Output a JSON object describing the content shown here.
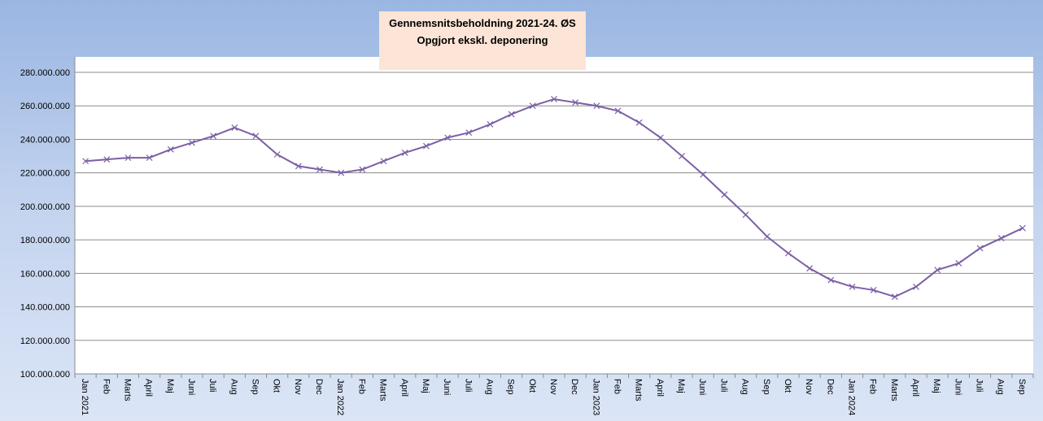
{
  "chart_data": {
    "type": "line",
    "title": "Gennemsnitsbeholdning 2021-24. ØS",
    "subtitle": "Opgjort ekskl. deponering",
    "categories": [
      "Jan 2021",
      "Feb",
      "Marts",
      "April",
      "Maj",
      "Juni",
      "Juli",
      "Aug",
      "Sep",
      "Okt",
      "Nov",
      "Dec",
      "Jan 2022",
      "Feb",
      "Marts",
      "April",
      "Maj",
      "Juni",
      "Juli",
      "Aug",
      "Sep",
      "Okt",
      "Nov",
      "Dec",
      "Jan 2023",
      "Feb",
      "Marts",
      "April",
      "Maj",
      "Juni",
      "Juli",
      "Aug",
      "Sep",
      "Okt",
      "Nov",
      "Dec",
      "Jan 2024",
      "Feb",
      "Marts",
      "April",
      "Maj",
      "Juni",
      "Juli",
      "Aug",
      "Sep"
    ],
    "series": [
      {
        "color": "#7b5fa6",
        "values": [
          227000000,
          228000000,
          229000000,
          229000000,
          234000000,
          238000000,
          242000000,
          247000000,
          242000000,
          231000000,
          224000000,
          222000000,
          220000000,
          222000000,
          227000000,
          232000000,
          236000000,
          241000000,
          244000000,
          249000000,
          255000000,
          260000000,
          264000000,
          262000000,
          260000000,
          257000000,
          250000000,
          241000000,
          230000000,
          219000000,
          207000000,
          195000000,
          182000000,
          172000000,
          163000000,
          156000000,
          152000000,
          150000000,
          146000000,
          152000000,
          162000000,
          166000000,
          175000000,
          181000000,
          187000000
        ]
      }
    ],
    "ylim": [
      100000000,
      280000000
    ],
    "yticks": [
      {
        "value": 100000000,
        "label": "100.000.000"
      },
      {
        "value": 120000000,
        "label": "120.000.000"
      },
      {
        "value": 140000000,
        "label": "140.000.000"
      },
      {
        "value": 160000000,
        "label": "160.000.000"
      },
      {
        "value": 180000000,
        "label": "180.000.000"
      },
      {
        "value": 200000000,
        "label": "200.000.000"
      },
      {
        "value": 220000000,
        "label": "220.000.000"
      },
      {
        "value": 240000000,
        "label": "240.000.000"
      },
      {
        "value": 260000000,
        "label": "260.000.000"
      },
      {
        "value": 280000000,
        "label": "280.000.000"
      }
    ],
    "grid": true
  }
}
